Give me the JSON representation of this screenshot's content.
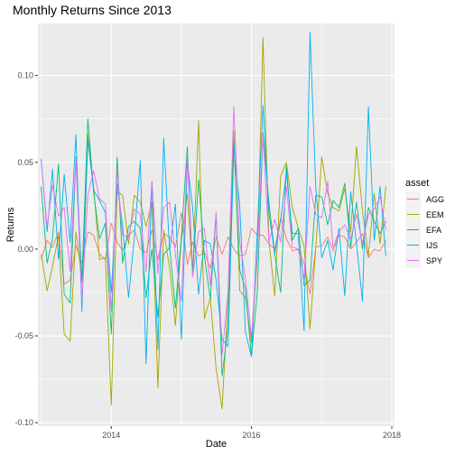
{
  "chart_data": {
    "type": "line",
    "title": "Monthly Returns Since 2013",
    "xlabel": "Date",
    "ylabel": "Returns",
    "x_range": [
      "2012-12-15",
      "2018-01-15"
    ],
    "ylim": [
      -0.102,
      0.13
    ],
    "x_ticks": [
      {
        "date": "2014-01-01",
        "label": "2014"
      },
      {
        "date": "2016-01-01",
        "label": "2016"
      },
      {
        "date": "2018-01-01",
        "label": "2018"
      }
    ],
    "y_ticks": [
      {
        "value": -0.1,
        "label": "-0.10"
      },
      {
        "value": -0.05,
        "label": "-0.05"
      },
      {
        "value": 0.0,
        "label": "0.00"
      },
      {
        "value": 0.05,
        "label": "0.05"
      },
      {
        "value": 0.1,
        "label": "0.10"
      }
    ],
    "grid": true,
    "panel_color": "#ebebeb",
    "legend": {
      "title": "asset",
      "position": "right"
    },
    "dates": [
      "2013-01",
      "2013-02",
      "2013-03",
      "2013-04",
      "2013-05",
      "2013-06",
      "2013-07",
      "2013-08",
      "2013-09",
      "2013-10",
      "2013-11",
      "2013-12",
      "2014-01",
      "2014-02",
      "2014-03",
      "2014-04",
      "2014-05",
      "2014-06",
      "2014-07",
      "2014-08",
      "2014-09",
      "2014-10",
      "2014-11",
      "2014-12",
      "2015-01",
      "2015-02",
      "2015-03",
      "2015-04",
      "2015-05",
      "2015-06",
      "2015-07",
      "2015-08",
      "2015-09",
      "2015-10",
      "2015-11",
      "2015-12",
      "2016-01",
      "2016-02",
      "2016-03",
      "2016-04",
      "2016-05",
      "2016-06",
      "2016-07",
      "2016-08",
      "2016-09",
      "2016-10",
      "2016-11",
      "2016-12",
      "2017-01",
      "2017-02",
      "2017-03",
      "2017-04",
      "2017-05",
      "2017-06",
      "2017-07",
      "2017-08",
      "2017-09",
      "2017-10",
      "2017-11",
      "2017-12"
    ],
    "series": [
      {
        "name": "AGG",
        "color": "#F8766D",
        "values": [
          -0.006,
          0.005,
          0.001,
          0.01,
          -0.02,
          -0.018,
          0.002,
          -0.008,
          0.01,
          0.008,
          -0.003,
          -0.006,
          0.015,
          0.004,
          -0.001,
          0.008,
          0.011,
          0.0,
          -0.002,
          0.011,
          -0.006,
          0.009,
          0.007,
          0.001,
          0.021,
          -0.009,
          0.004,
          -0.004,
          -0.002,
          -0.011,
          0.007,
          -0.003,
          0.007,
          0.0,
          -0.004,
          -0.003,
          0.012,
          0.008,
          0.008,
          0.003,
          0.0,
          0.018,
          0.006,
          -0.001,
          0.0,
          -0.008,
          -0.026,
          0.001,
          0.002,
          0.007,
          -0.001,
          0.008,
          0.007,
          0.0,
          0.004,
          0.009,
          -0.005,
          0.0,
          -0.001,
          0.005
        ]
      },
      {
        "name": "EEM",
        "color": "#A3A500",
        "values": [
          -0.003,
          -0.024,
          -0.01,
          0.008,
          -0.049,
          -0.053,
          0.01,
          -0.017,
          0.066,
          0.036,
          -0.006,
          -0.005,
          -0.09,
          0.033,
          0.031,
          0.003,
          0.031,
          0.027,
          0.013,
          0.027,
          -0.08,
          0.011,
          -0.011,
          -0.044,
          0.005,
          0.032,
          -0.015,
          0.074,
          -0.04,
          -0.028,
          -0.069,
          -0.092,
          -0.028,
          0.068,
          -0.024,
          -0.028,
          -0.054,
          -0.004,
          0.122,
          0.005,
          -0.027,
          0.042,
          0.05,
          0.024,
          0.012,
          0.002,
          -0.046,
          0.001,
          0.053,
          0.032,
          0.024,
          0.022,
          0.035,
          0.01,
          0.059,
          0.022,
          -0.004,
          0.032,
          0.003,
          0.036
        ]
      },
      {
        "name": "EFA",
        "color": "#00BF7D",
        "values": [
          0.036,
          -0.008,
          0.006,
          0.049,
          -0.026,
          -0.031,
          0.053,
          -0.019,
          0.075,
          0.033,
          0.006,
          0.015,
          -0.049,
          0.053,
          -0.008,
          0.013,
          0.016,
          0.012,
          -0.028,
          0.0,
          -0.039,
          -0.003,
          0.001,
          -0.034,
          0.007,
          0.059,
          -0.014,
          0.04,
          -0.004,
          -0.029,
          0.02,
          -0.073,
          -0.045,
          0.062,
          -0.012,
          -0.023,
          -0.062,
          -0.024,
          0.067,
          0.027,
          -0.003,
          -0.025,
          0.048,
          0.005,
          0.012,
          -0.021,
          -0.018,
          0.031,
          0.03,
          0.014,
          0.028,
          0.024,
          0.038,
          0.001,
          0.027,
          0.0,
          0.024,
          0.016,
          0.009,
          0.016
        ]
      },
      {
        "name": "IJS",
        "color": "#00B0F6",
        "values": [
          0.052,
          0.01,
          0.046,
          -0.006,
          0.043,
          0.004,
          0.066,
          -0.036,
          0.063,
          0.034,
          0.028,
          0.021,
          -0.025,
          0.038,
          0.013,
          -0.028,
          0.007,
          0.051,
          -0.066,
          0.039,
          -0.058,
          0.064,
          -0.001,
          0.026,
          -0.052,
          0.05,
          0.024,
          -0.026,
          0.005,
          0.003,
          -0.018,
          -0.052,
          -0.056,
          0.058,
          0.025,
          -0.048,
          -0.062,
          0.011,
          0.083,
          0.021,
          -0.003,
          0.017,
          0.044,
          0.009,
          0.009,
          -0.047,
          0.125,
          0.035,
          -0.005,
          0.005,
          -0.012,
          0.012,
          -0.027,
          0.033,
          0.003,
          -0.03,
          0.082,
          0.005,
          0.036,
          -0.004
        ]
      },
      {
        "name": "SPY",
        "color": "#E76BF3",
        "values": [
          0.051,
          0.013,
          0.037,
          0.019,
          0.024,
          -0.013,
          0.052,
          -0.03,
          0.031,
          0.045,
          0.029,
          0.026,
          -0.036,
          0.045,
          0.008,
          0.007,
          0.023,
          0.02,
          -0.013,
          0.039,
          -0.014,
          0.024,
          0.027,
          -0.003,
          -0.03,
          0.055,
          -0.016,
          0.01,
          0.012,
          -0.021,
          0.021,
          -0.061,
          -0.025,
          0.082,
          0.004,
          -0.017,
          -0.051,
          -0.001,
          0.066,
          0.004,
          0.017,
          0.004,
          0.036,
          0.001,
          0.0,
          -0.017,
          0.036,
          0.02,
          0.018,
          0.039,
          0.001,
          0.01,
          0.014,
          0.006,
          0.02,
          0.003,
          0.02,
          0.023,
          0.03,
          0.011
        ]
      }
    ]
  }
}
